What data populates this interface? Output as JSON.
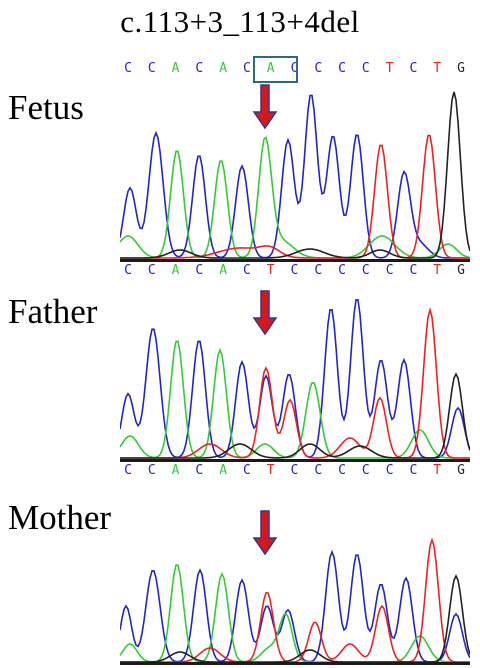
{
  "title": "c.113+3_113+4del",
  "colors": {
    "A": "#33cc33",
    "C": "#2424cc",
    "G": "#222222",
    "T": "#ee2222",
    "arrow_fill": "#d81818",
    "arrow_stroke": "#2d3a8c",
    "highlight_box": "#2c6a80"
  },
  "panels": [
    {
      "id": "fetus",
      "label": "Fetus",
      "top_sequence": [
        "C",
        "C",
        "A",
        "C",
        "A",
        "C",
        "A",
        "C",
        "C",
        "C",
        "C",
        "T",
        "C",
        "T",
        "G"
      ],
      "bottom_sequence": [
        "C",
        "C",
        "A",
        "C",
        "A",
        "C",
        "T",
        "C",
        "C",
        "C",
        "C",
        "C",
        "C",
        "T",
        "G"
      ]
    },
    {
      "id": "father",
      "label": "Father",
      "bottom_sequence": [
        "C",
        "C",
        "A",
        "C",
        "A",
        "C",
        "T",
        "C",
        "C",
        "C",
        "C",
        "C",
        "C",
        "T",
        "G"
      ]
    },
    {
      "id": "mother",
      "label": "Mother"
    }
  ]
}
